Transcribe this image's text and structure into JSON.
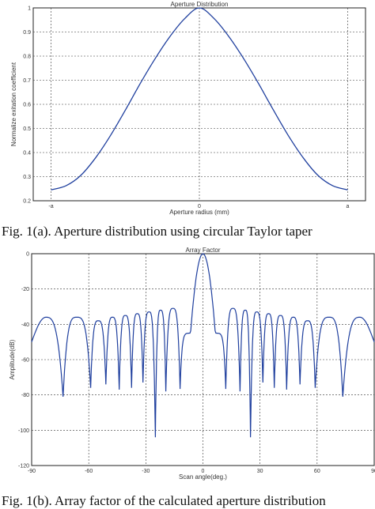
{
  "figure1": {
    "caption": "Fig. 1(a). Aperture distribution using circular Taylor taper",
    "chart_data": {
      "type": "line",
      "title": "Aperture Distribution",
      "xlabel": "Aperture radius (mm)",
      "ylabel": "Normalize exitation coefficient",
      "xlim": [
        -1.12,
        1.12
      ],
      "ylim": [
        0.2,
        1.0
      ],
      "xticks": [
        {
          "value": -1,
          "label": "-a"
        },
        {
          "value": 0,
          "label": "0"
        },
        {
          "value": 1,
          "label": "a"
        }
      ],
      "yticks": [
        {
          "value": 0.2,
          "label": "0.2"
        },
        {
          "value": 0.3,
          "label": "0.3"
        },
        {
          "value": 0.4,
          "label": "0.4"
        },
        {
          "value": 0.5,
          "label": "0.5"
        },
        {
          "value": 0.6,
          "label": "0.6"
        },
        {
          "value": 0.7,
          "label": "0.7"
        },
        {
          "value": 0.8,
          "label": "0.8"
        },
        {
          "value": 0.9,
          "label": "0.9"
        },
        {
          "value": 1.0,
          "label": "1"
        }
      ],
      "grid": true,
      "series": [
        {
          "color": "#1f3f9e",
          "x": [
            -1.0,
            -0.9,
            -0.8,
            -0.7,
            -0.6,
            -0.5,
            -0.4,
            -0.3,
            -0.2,
            -0.1,
            0.0,
            0.1,
            0.2,
            0.3,
            0.4,
            0.5,
            0.6,
            0.7,
            0.8,
            0.9,
            1.0
          ],
          "y": [
            0.245,
            0.262,
            0.305,
            0.378,
            0.47,
            0.575,
            0.685,
            0.788,
            0.88,
            0.955,
            1.0,
            0.955,
            0.88,
            0.788,
            0.685,
            0.575,
            0.47,
            0.378,
            0.305,
            0.262,
            0.245
          ]
        }
      ]
    }
  },
  "figure2": {
    "caption": "Fig. 1(b). Array factor of the calculated aperture distribution",
    "chart_data": {
      "type": "line",
      "title": "Array Factor",
      "xlabel": "Scan angle(deg.)",
      "ylabel": "Amplitude(dB)",
      "xlim": [
        -90,
        90
      ],
      "ylim": [
        -120,
        0
      ],
      "xticks": [
        {
          "value": -90,
          "label": "-90"
        },
        {
          "value": -60,
          "label": "-60"
        },
        {
          "value": -30,
          "label": "-30"
        },
        {
          "value": 0,
          "label": "0"
        },
        {
          "value": 30,
          "label": "30"
        },
        {
          "value": 60,
          "label": "60"
        },
        {
          "value": 90,
          "label": "90"
        }
      ],
      "yticks": [
        {
          "value": 0,
          "label": "0"
        },
        {
          "value": -20,
          "label": "-20"
        },
        {
          "value": -40,
          "label": "-40"
        },
        {
          "value": -60,
          "label": "-60"
        },
        {
          "value": -80,
          "label": "-80"
        },
        {
          "value": -100,
          "label": "-100"
        },
        {
          "value": -120,
          "label": "-120"
        }
      ],
      "grid": true,
      "main_lobe": {
        "center": 0,
        "peak": 0,
        "edge": -45,
        "half_width": 6.5
      },
      "series": [
        {
          "color": "#1f3f9e",
          "nulls": [
            -73.5,
            -59,
            -51,
            -44,
            -37.5,
            -31.5,
            -25,
            -19.5,
            -12,
            12,
            19.5,
            25,
            31.5,
            37.5,
            44,
            51,
            59,
            73.5
          ],
          "null_depths": [
            -81,
            -76,
            -74,
            -77,
            -76,
            -73,
            -104,
            -78,
            -76,
            -76,
            -78,
            -104,
            -73,
            -76,
            -77,
            -74,
            -76,
            -81
          ],
          "lobe_peaks": [
            -50,
            -36,
            -38,
            -36,
            -35,
            -34,
            -33,
            -32,
            -31,
            -31,
            -31,
            -32,
            -33,
            -34,
            -35,
            -36,
            -38,
            -36,
            -50
          ]
        }
      ]
    }
  }
}
